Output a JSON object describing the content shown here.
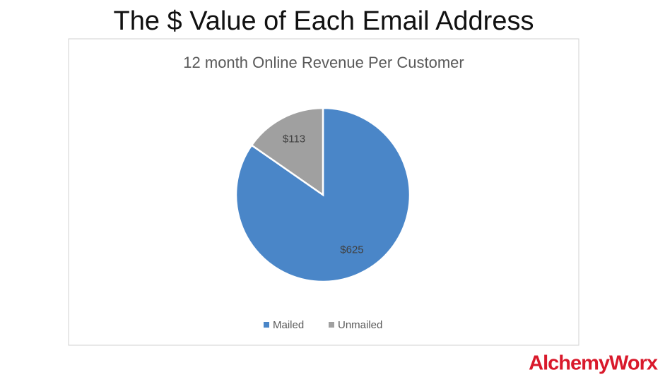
{
  "slide_title": "The $ Value of Each Email Address",
  "logo": "AlchemyWorx",
  "chart_data": {
    "type": "pie",
    "title": "12 month Online Revenue Per Customer",
    "categories": [
      "Mailed",
      "Unmailed"
    ],
    "values": [
      625,
      113
    ],
    "value_labels": [
      "$625",
      "$113"
    ],
    "colors": [
      "#4a86c8",
      "#a0a0a0"
    ],
    "legend": "bottom"
  }
}
